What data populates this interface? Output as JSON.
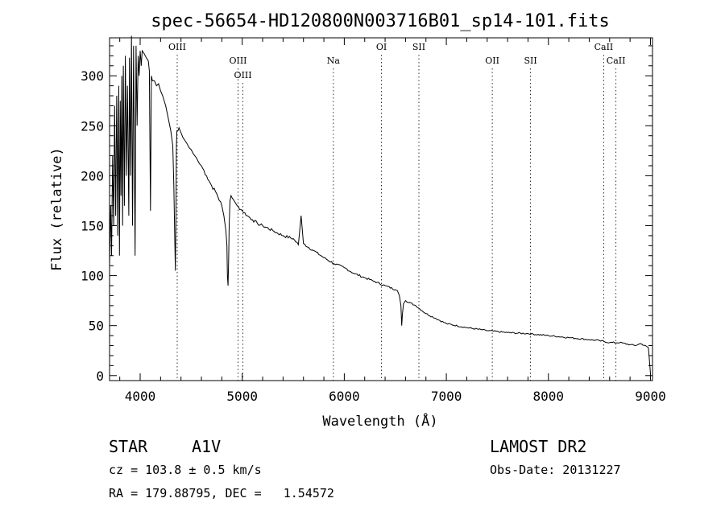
{
  "chart_data": {
    "type": "line",
    "title": "spec-56654-HD120800N003716B01_sp14-101.fits",
    "xlabel": "Wavelength (Å)",
    "ylabel": "Flux (relative)",
    "xlim": [
      3700,
      9020
    ],
    "ylim": [
      -5,
      338
    ],
    "x_ticks": [
      4000,
      5000,
      6000,
      7000,
      8000,
      9000
    ],
    "y_ticks": [
      0,
      50,
      100,
      150,
      200,
      250,
      300
    ],
    "grid": false,
    "series": [
      {
        "x": [
          3700,
          3710,
          3720,
          3730,
          3740,
          3750,
          3760,
          3770,
          3775,
          3780,
          3790,
          3797,
          3805,
          3812,
          3820,
          3828,
          3835,
          3845,
          3855,
          3865,
          3875,
          3889,
          3895,
          3905,
          3915,
          3925,
          3935,
          3950,
          3960,
          3970,
          3980,
          3990,
          4000,
          4010,
          4020,
          4040,
          4060,
          4080,
          4090,
          4101,
          4110,
          4120,
          4140,
          4160,
          4180,
          4200,
          4220,
          4250,
          4280,
          4300,
          4320,
          4330,
          4340,
          4345,
          4350,
          4355,
          4360,
          4370,
          4380,
          4400,
          4420,
          4440,
          4460,
          4480,
          4500,
          4520,
          4550,
          4580,
          4600,
          4650,
          4700,
          4750,
          4800,
          4820,
          4840,
          4850,
          4855,
          4861,
          4867,
          4872,
          4880,
          4890,
          4900,
          4920,
          4950,
          5000,
          5050,
          5100,
          5150,
          5200,
          5300,
          5400,
          5500,
          5550,
          5577,
          5600,
          5700,
          5800,
          5900,
          6000,
          6100,
          6200,
          6300,
          6400,
          6500,
          6520,
          6540,
          6555,
          6563,
          6570,
          6580,
          6600,
          6700,
          6800,
          6900,
          7000,
          7200,
          7400,
          7600,
          7800,
          8000,
          8200,
          8400,
          8500,
          8600,
          8700,
          8800,
          8850,
          8900,
          8950,
          8980,
          8990,
          9000
        ],
        "y": [
          110,
          170,
          120,
          220,
          150,
          270,
          160,
          280,
          230,
          140,
          290,
          120,
          275,
          180,
          300,
          150,
          310,
          170,
          320,
          200,
          290,
          160,
          318,
          200,
          340,
          150,
          330,
          120,
          330,
          250,
          320,
          300,
          325,
          310,
          325,
          322,
          318,
          315,
          305,
          165,
          300,
          295,
          295,
          290,
          292,
          285,
          280,
          270,
          255,
          245,
          230,
          190,
          130,
          105,
          150,
          230,
          245,
          245,
          248,
          243,
          238,
          235,
          232,
          228,
          226,
          222,
          218,
          212,
          210,
          200,
          190,
          182,
          170,
          160,
          145,
          130,
          100,
          90,
          115,
          150,
          175,
          180,
          178,
          175,
          170,
          165,
          160,
          156,
          152,
          150,
          145,
          140,
          137,
          131,
          160,
          132,
          125,
          118,
          112,
          108,
          102,
          98,
          94,
          90,
          86,
          85,
          80,
          70,
          50,
          62,
          72,
          75,
          70,
          62,
          57,
          52,
          48,
          45,
          43,
          42,
          40,
          38,
          36,
          35,
          33,
          33,
          31,
          30,
          32,
          30,
          28,
          15,
          2
        ]
      }
    ],
    "line_markers": {
      "top_row": [
        {
          "label": "OIII",
          "x": 4363
        },
        {
          "label": "OI",
          "x": 6364
        },
        {
          "label": "SII",
          "x": 6731
        },
        {
          "label": "CaII",
          "x": 8542
        }
      ],
      "upper_row": [
        {
          "label": "OIII",
          "x": 4959
        },
        {
          "label": "Na",
          "x": 5893
        },
        {
          "label": "OII",
          "x": 7450
        },
        {
          "label": "SII",
          "x": 7825
        },
        {
          "label": "CaII",
          "x": 8662
        }
      ],
      "lower_row": [
        {
          "label": "OIII",
          "x": 5007
        }
      ]
    }
  },
  "info": {
    "object_class": "STAR",
    "subclass": "A1V",
    "survey": "LAMOST DR2",
    "redshift": "cz = 103.8 ± 0.5 km/s",
    "obs_date": "Obs-Date: 20131227",
    "coords": "RA = 179.88795, DEC =   1.54572"
  }
}
